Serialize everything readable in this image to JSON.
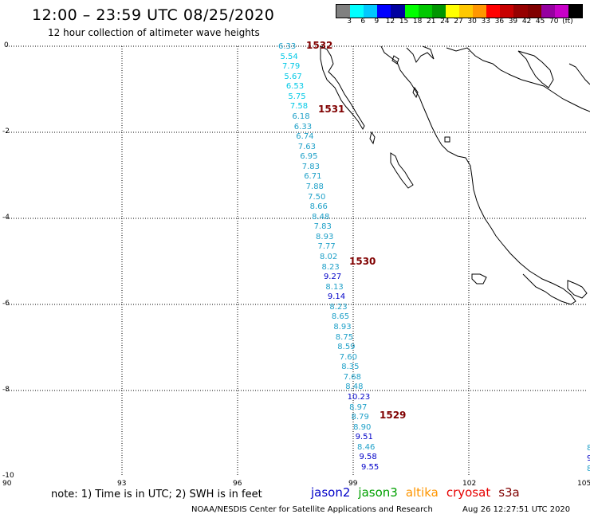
{
  "header": {
    "title": "12:00 – 23:59 UTC 08/25/2020",
    "subtitle": "12 hour collection of altimeter wave heights"
  },
  "legend": {
    "colors": [
      "#808080",
      "#00ffff",
      "#00c8ff",
      "#0000ff",
      "#0000a0",
      "#00ff00",
      "#00c800",
      "#009600",
      "#ffff00",
      "#ffc800",
      "#ff9600",
      "#ff0000",
      "#c80000",
      "#960000",
      "#800000",
      "#9600a0",
      "#c800c8",
      "#000000"
    ],
    "labels": [
      "3",
      "6",
      "9",
      "12",
      "15",
      "18",
      "21",
      "24",
      "27",
      "30",
      "33",
      "36",
      "39",
      "42",
      "45",
      "70",
      "(ft)"
    ]
  },
  "axes": {
    "x_ticks": [
      "90",
      "93",
      "96",
      "99",
      "102",
      "105"
    ],
    "y_ticks": [
      "0",
      "-2",
      "-4",
      "-6",
      "-8",
      "-10"
    ]
  },
  "track": {
    "values": [
      "6.33",
      "5.54",
      "7.79",
      "5.67",
      "6.53",
      "5.75",
      "7.58",
      "6.18",
      "6.33",
      "6.74",
      "7.63",
      "6.95",
      "7.83",
      "6.71",
      "7.88",
      "7.50",
      "8.66",
      "8.48",
      "7.83",
      "8.93",
      "7.77",
      "8.02",
      "8.23",
      "9.27",
      "8.13",
      "9.14",
      "8.23",
      "8.65",
      "8.93",
      "8.75",
      "8.59",
      "7.60",
      "8.35",
      "7.68",
      "8.48",
      "10.23",
      "8.97",
      "8.79",
      "8.90",
      "9.51",
      "8.46",
      "9.58",
      "9.55"
    ],
    "colors": [
      "#1ea0c8",
      "#00c8e6",
      "#00c8e6",
      "#00c8e6",
      "#00c8e6",
      "#00c8e6",
      "#00c8e6",
      "#1ea0c8",
      "#1ea0c8",
      "#1ea0c8",
      "#1ea0c8",
      "#1ea0c8",
      "#1ea0c8",
      "#1ea0c8",
      "#1ea0c8",
      "#1ea0c8",
      "#1ea0c8",
      "#1ea0c8",
      "#1ea0c8",
      "#1ea0c8",
      "#1ea0c8",
      "#1ea0c8",
      "#1ea0c8",
      "#0000c8",
      "#1ea0c8",
      "#0000c8",
      "#1ea0c8",
      "#1ea0c8",
      "#1ea0c8",
      "#1ea0c8",
      "#1ea0c8",
      "#1ea0c8",
      "#1ea0c8",
      "#1ea0c8",
      "#1ea0c8",
      "#0000c8",
      "#1ea0c8",
      "#1ea0c8",
      "#1ea0c8",
      "#0000c8",
      "#1ea0c8",
      "#0000c8",
      "#0000c8"
    ],
    "time_labels": [
      "1532",
      "1531",
      "1530",
      "1529"
    ],
    "edge_values": [
      "8",
      "9",
      "8"
    ]
  },
  "footer": {
    "note": "note: 1) Time is in UTC; 2) SWH is in feet",
    "satellites": [
      {
        "name": "jason2",
        "color": "#0000c8"
      },
      {
        "name": "jason3",
        "color": "#00a000"
      },
      {
        "name": "altika",
        "color": "#ff9600"
      },
      {
        "name": "cryosat",
        "color": "#e60000"
      },
      {
        "name": "s3a",
        "color": "#800000"
      }
    ],
    "credit": "NOAA/NESDIS Center for Satellite Applications and Research",
    "timestamp": "Aug 26 12:27:51 UTC 2020"
  }
}
